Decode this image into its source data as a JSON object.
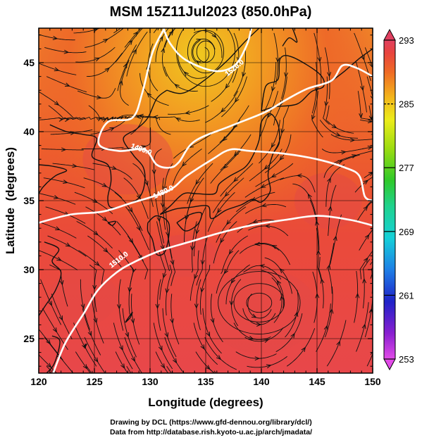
{
  "chart_data": {
    "type": "heatmap",
    "title": "MSM 15Z11Jul2023 (850.0hPa)",
    "xlabel": "Longitude (degrees)",
    "ylabel": "Latitude  (degrees)",
    "xlim": [
      120,
      150
    ],
    "ylim": [
      22.5,
      47.5
    ],
    "x_ticks": [
      120,
      125,
      130,
      135,
      140,
      145,
      150
    ],
    "y_ticks": [
      25,
      30,
      35,
      40,
      45
    ],
    "grid": true,
    "colorbar": {
      "range": [
        253,
        293
      ],
      "ticks": [
        253,
        261,
        269,
        277,
        285,
        293
      ],
      "dashed_levels": [
        285
      ],
      "colors": [
        "#e24be8",
        "#8a1fd0",
        "#1f22c8",
        "#1e7fe6",
        "#15d0d8",
        "#1fd28c",
        "#2fc92a",
        "#9cdc10",
        "#ecec1a",
        "#f3b61a",
        "#ef6a25",
        "#e8443e",
        "#e04060"
      ]
    },
    "contours": [
      {
        "label": "1520.0",
        "points": [
          [
            131.2,
            47.5
          ],
          [
            131.8,
            46.4
          ],
          [
            133.2,
            45.2
          ],
          [
            135.8,
            44.4
          ],
          [
            137.6,
            44.8
          ],
          [
            138.7,
            46.3
          ],
          [
            139.1,
            47.5
          ]
        ]
      },
      {
        "label": "1490.0",
        "points": [
          [
            131.3,
            47.5
          ],
          [
            130.2,
            45.7
          ],
          [
            129.3,
            42.8
          ],
          [
            128.4,
            41.0
          ],
          [
            126.2,
            40.7
          ],
          [
            125.4,
            39.1
          ],
          [
            127.2,
            38.6
          ],
          [
            129.5,
            38.7
          ],
          [
            130.6,
            37.6
          ],
          [
            131.8,
            37.4
          ],
          [
            132.6,
            37.8
          ],
          [
            134.0,
            39.3
          ],
          [
            137.2,
            40.4
          ],
          [
            140.3,
            41.4
          ],
          [
            142.2,
            42.3
          ],
          [
            144.1,
            43.1
          ],
          [
            146.3,
            43.7
          ],
          [
            147.3,
            44.8
          ],
          [
            148.6,
            44.6
          ],
          [
            150.0,
            44.0
          ]
        ]
      },
      {
        "label": "1480.0",
        "points": [
          [
            120.0,
            33.4
          ],
          [
            122.9,
            34.0
          ],
          [
            125.7,
            34.2
          ],
          [
            128.2,
            34.8
          ],
          [
            131.6,
            35.7
          ],
          [
            133.3,
            36.8
          ],
          [
            135.6,
            38.0
          ],
          [
            137.2,
            38.7
          ],
          [
            139.0,
            38.6
          ],
          [
            142.1,
            38.4
          ],
          [
            145.0,
            38.0
          ],
          [
            147.5,
            37.4
          ],
          [
            148.8,
            36.8
          ],
          [
            149.3,
            35.3
          ],
          [
            150.0,
            35.0
          ]
        ]
      },
      {
        "label": "1510.0",
        "points": [
          [
            121.3,
            22.5
          ],
          [
            122.4,
            24.7
          ],
          [
            124.1,
            26.9
          ],
          [
            125.3,
            28.5
          ],
          [
            127.0,
            29.8
          ],
          [
            128.7,
            30.6
          ],
          [
            131.0,
            31.4
          ],
          [
            133.5,
            32.0
          ],
          [
            136.0,
            32.6
          ],
          [
            139.0,
            33.2
          ],
          [
            142.1,
            33.6
          ],
          [
            145.1,
            33.9
          ],
          [
            148.0,
            33.6
          ],
          [
            150.0,
            33.2
          ]
        ]
      }
    ],
    "vortex_centers": [
      [
        135.0,
        45.8
      ],
      [
        139.8,
        27.6
      ]
    ],
    "contour_label_positions": [
      [
        137.6,
        44.6
      ],
      [
        129.2,
        38.7
      ],
      [
        131.2,
        35.6
      ],
      [
        127.2,
        30.7
      ]
    ]
  },
  "credits": {
    "line1": "Drawing by DCL (https://www.gfd-dennou.org/library/dcl/)",
    "line2": "Data from http://database.rish.kyoto-u.ac.jp/arch/jmadata/"
  }
}
